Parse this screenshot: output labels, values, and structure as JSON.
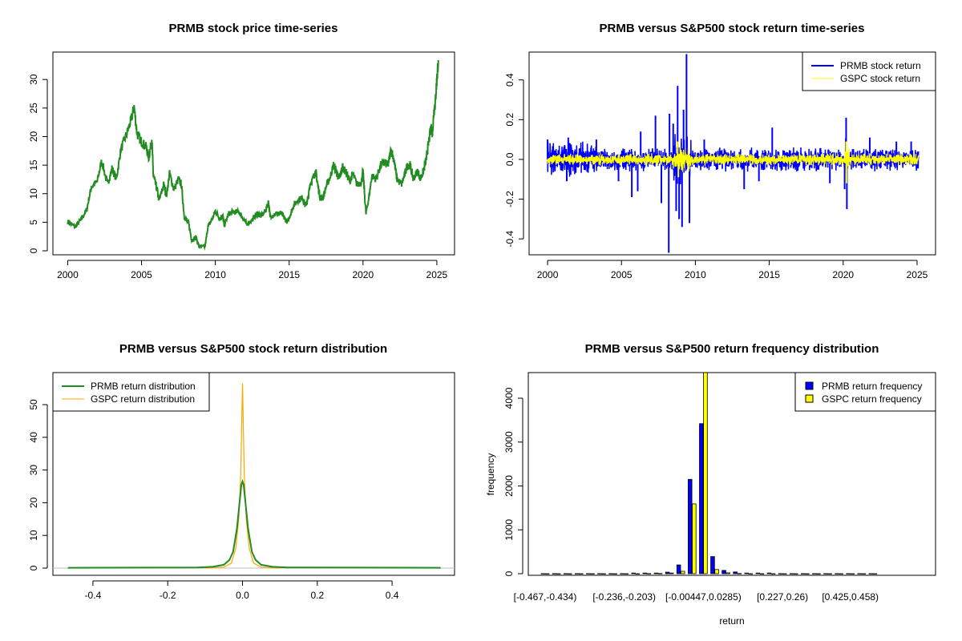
{
  "colors": {
    "prmb_price": "#228B22",
    "prmb_return": "#0000FF",
    "gspc_return": "#FFFF00",
    "prmb_density": "#228B22",
    "gspc_density": "#FFA500",
    "zero_line": "#BEBEBE"
  },
  "chart_data": [
    {
      "type": "line",
      "title": "PRMB stock price time-series",
      "xlabel": "",
      "ylabel": "",
      "xlim": [
        1999.0,
        2026.2
      ],
      "ylim": [
        -0.7,
        34.8
      ],
      "x_ticks": [
        "2000",
        "2005",
        "2010",
        "2015",
        "2020",
        "2025"
      ],
      "y_ticks": [
        "0",
        "5",
        "10",
        "15",
        "20",
        "25",
        "30"
      ],
      "grid": false,
      "series": [
        {
          "points": [
            [
              2000.0,
              5.1
            ],
            [
              2000.5,
              4.2
            ],
            [
              2000.9,
              5.4
            ],
            [
              2001.3,
              7.3
            ],
            [
              2001.6,
              11.2
            ],
            [
              2002.0,
              12.1
            ],
            [
              2002.3,
              15.8
            ],
            [
              2002.7,
              11.6
            ],
            [
              2003.0,
              14.4
            ],
            [
              2003.3,
              12.6
            ],
            [
              2003.6,
              17.7
            ],
            [
              2004.0,
              20.5
            ],
            [
              2004.3,
              22.9
            ],
            [
              2004.5,
              25.2
            ],
            [
              2004.7,
              20.5
            ],
            [
              2005.0,
              19.1
            ],
            [
              2005.3,
              18.2
            ],
            [
              2005.5,
              16.3
            ],
            [
              2005.7,
              19.6
            ],
            [
              2005.8,
              13.1
            ],
            [
              2006.0,
              11.2
            ],
            [
              2006.2,
              8.8
            ],
            [
              2006.5,
              11.6
            ],
            [
              2006.7,
              9.8
            ],
            [
              2006.9,
              13.5
            ],
            [
              2007.2,
              10.7
            ],
            [
              2007.5,
              12.6
            ],
            [
              2007.7,
              11.6
            ],
            [
              2007.9,
              6.0
            ],
            [
              2008.2,
              4.7
            ],
            [
              2008.4,
              1.9
            ],
            [
              2008.7,
              2.3
            ],
            [
              2008.9,
              0.7
            ],
            [
              2009.3,
              0.7
            ],
            [
              2009.5,
              4.2
            ],
            [
              2009.8,
              5.6
            ],
            [
              2010.0,
              7.0
            ],
            [
              2010.3,
              5.6
            ],
            [
              2010.5,
              6.3
            ],
            [
              2010.6,
              4.4
            ],
            [
              2010.9,
              6.5
            ],
            [
              2011.2,
              6.8
            ],
            [
              2011.6,
              6.8
            ],
            [
              2011.9,
              5.6
            ],
            [
              2012.1,
              4.7
            ],
            [
              2012.5,
              5.4
            ],
            [
              2012.8,
              6.5
            ],
            [
              2013.1,
              6.1
            ],
            [
              2013.4,
              7.0
            ],
            [
              2013.6,
              8.6
            ],
            [
              2013.7,
              6.1
            ],
            [
              2014.1,
              6.5
            ],
            [
              2014.5,
              6.5
            ],
            [
              2014.7,
              5.6
            ],
            [
              2014.9,
              5.1
            ],
            [
              2015.1,
              6.5
            ],
            [
              2015.3,
              7.9
            ],
            [
              2015.6,
              8.9
            ],
            [
              2015.9,
              9.3
            ],
            [
              2016.1,
              7.9
            ],
            [
              2016.3,
              9.3
            ],
            [
              2016.4,
              11.6
            ],
            [
              2016.6,
              12.6
            ],
            [
              2016.8,
              14.0
            ],
            [
              2016.9,
              12.1
            ],
            [
              2017.1,
              9.3
            ],
            [
              2017.3,
              9.3
            ],
            [
              2017.5,
              11.2
            ],
            [
              2017.8,
              13.1
            ],
            [
              2018.0,
              15.0
            ],
            [
              2018.2,
              14.0
            ],
            [
              2018.3,
              12.6
            ],
            [
              2018.5,
              13.5
            ],
            [
              2018.6,
              14.7
            ],
            [
              2018.9,
              13.5
            ],
            [
              2019.1,
              12.1
            ],
            [
              2019.3,
              13.5
            ],
            [
              2019.6,
              11.6
            ],
            [
              2019.9,
              12.1
            ],
            [
              2020.0,
              14.0
            ],
            [
              2020.2,
              6.5
            ],
            [
              2020.4,
              9.3
            ],
            [
              2020.6,
              13.1
            ],
            [
              2020.9,
              12.6
            ],
            [
              2021.2,
              15.0
            ],
            [
              2021.5,
              15.4
            ],
            [
              2021.7,
              15.0
            ],
            [
              2021.9,
              17.8
            ],
            [
              2022.1,
              15.9
            ],
            [
              2022.3,
              12.6
            ],
            [
              2022.6,
              11.6
            ],
            [
              2022.8,
              13.1
            ],
            [
              2023.0,
              15.0
            ],
            [
              2023.2,
              15.0
            ],
            [
              2023.4,
              12.6
            ],
            [
              2023.7,
              14.0
            ],
            [
              2023.9,
              12.6
            ],
            [
              2024.1,
              14.0
            ],
            [
              2024.3,
              16.3
            ],
            [
              2024.4,
              18.2
            ],
            [
              2024.6,
              21.5
            ],
            [
              2024.7,
              20.6
            ],
            [
              2024.8,
              24.3
            ],
            [
              2024.9,
              26.2
            ],
            [
              2025.0,
              29.9
            ],
            [
              2025.1,
              33.4
            ]
          ]
        }
      ]
    },
    {
      "type": "line",
      "title": "PRMB versus S&P500 stock return time-series",
      "xlabel": "",
      "ylabel": "",
      "xlim": [
        1998.75,
        2026.25
      ],
      "ylim": [
        -0.48,
        0.54
      ],
      "x_ticks": [
        "2000",
        "2005",
        "2010",
        "2015",
        "2020",
        "2025"
      ],
      "y_ticks": [
        "-0.4",
        "-0.2",
        "0.0",
        "0.2",
        "0.4"
      ],
      "legend": {
        "position": "top-right",
        "entries": [
          "PRMB stock return",
          "GSPC stock return"
        ]
      },
      "series": [
        {
          "name": "PRMB stock return",
          "typical_range": 0.05,
          "spikes": [
            [
              2000.0,
              0.1
            ],
            [
              2001.3,
              -0.11
            ],
            [
              2001.4,
              0.11
            ],
            [
              2003.3,
              0.1
            ],
            [
              2004.8,
              -0.11
            ],
            [
              2005.7,
              -0.19
            ],
            [
              2006.1,
              -0.16
            ],
            [
              2006.3,
              0.14
            ],
            [
              2007.3,
              0.22
            ],
            [
              2007.7,
              -0.22
            ],
            [
              2008.2,
              -0.47
            ],
            [
              2008.25,
              0.23
            ],
            [
              2008.5,
              0.18
            ],
            [
              2008.7,
              -0.26
            ],
            [
              2008.8,
              0.37
            ],
            [
              2008.9,
              -0.3
            ],
            [
              2009.1,
              -0.34
            ],
            [
              2009.2,
              0.25
            ],
            [
              2009.4,
              0.53
            ],
            [
              2009.6,
              -0.32
            ],
            [
              2010.6,
              0.1
            ],
            [
              2013.3,
              -0.15
            ],
            [
              2014.3,
              -0.11
            ],
            [
              2015.2,
              0.16
            ],
            [
              2019.1,
              -0.12
            ],
            [
              2020.1,
              -0.15
            ],
            [
              2020.2,
              0.21
            ],
            [
              2020.25,
              -0.25
            ],
            [
              2021.8,
              0.11
            ],
            [
              2023.6,
              0.09
            ],
            [
              2024.6,
              0.09
            ]
          ]
        },
        {
          "name": "GSPC stock return",
          "typical_range": 0.025,
          "spikes": [
            [
              2008.8,
              0.09
            ],
            [
              2008.85,
              -0.09
            ],
            [
              2020.2,
              0.09
            ],
            [
              2020.22,
              -0.12
            ]
          ]
        }
      ]
    },
    {
      "type": "line",
      "title": "PRMB versus S&P500 stock return distribution",
      "xlabel": "",
      "ylabel": "",
      "xlim": [
        -0.507,
        0.567
      ],
      "ylim": [
        -2.2,
        59.8
      ],
      "x_ticks": [
        "-0.4",
        "-0.2",
        "0.0",
        "0.2",
        "0.4"
      ],
      "y_ticks": [
        "0",
        "10",
        "20",
        "30",
        "40",
        "50"
      ],
      "legend": {
        "position": "top-left",
        "entries": [
          "PRMB return distribution",
          "GSPC return distribution"
        ]
      },
      "series": [
        {
          "name": "PRMB return distribution",
          "points": [
            [
              -0.467,
              0.1
            ],
            [
              -0.12,
              0.2
            ],
            [
              -0.08,
              0.4
            ],
            [
              -0.05,
              1.0
            ],
            [
              -0.035,
              2.5
            ],
            [
              -0.025,
              5
            ],
            [
              -0.015,
              12
            ],
            [
              -0.008,
              20
            ],
            [
              -0.003,
              25.5
            ],
            [
              0,
              26.5
            ],
            [
              0.003,
              25.5
            ],
            [
              0.008,
              20
            ],
            [
              0.015,
              12
            ],
            [
              0.025,
              5
            ],
            [
              0.035,
              2.5
            ],
            [
              0.05,
              1.0
            ],
            [
              0.08,
              0.4
            ],
            [
              0.12,
              0.2
            ],
            [
              0.53,
              0.1
            ]
          ]
        },
        {
          "name": "GSPC return distribution",
          "points": [
            [
              -0.1,
              0
            ],
            [
              -0.05,
              0.3
            ],
            [
              -0.03,
              1.5
            ],
            [
              -0.018,
              6
            ],
            [
              -0.01,
              15
            ],
            [
              -0.005,
              28
            ],
            [
              -0.002,
              45
            ],
            [
              0,
              56.5
            ],
            [
              0.002,
              45
            ],
            [
              0.005,
              28
            ],
            [
              0.01,
              15
            ],
            [
              0.018,
              6
            ],
            [
              0.03,
              1.5
            ],
            [
              0.05,
              0.3
            ],
            [
              0.1,
              0
            ]
          ]
        }
      ]
    },
    {
      "type": "bar",
      "title": "PRMB versus S&P500 return frequency distribution",
      "xlabel": "return",
      "ylabel": "frequency",
      "ylim": [
        0,
        4584
      ],
      "y_ticks": [
        "0",
        "1000",
        "2000",
        "3000",
        "4000"
      ],
      "x_tick_labels": [
        {
          "bin": 0,
          "label": "[-0.467,-0.434)"
        },
        {
          "bin": 7,
          "label": "[-0.236,-0.203)"
        },
        {
          "bin": 14,
          "label": "[-0.00447,0.0285)"
        },
        {
          "bin": 21,
          "label": "[0.227,0.26)"
        },
        {
          "bin": 27,
          "label": "[0.425,0.458)"
        }
      ],
      "legend": {
        "position": "top-right",
        "entries": [
          "PRMB return frequency",
          "GSPC return frequency"
        ]
      },
      "series": [
        {
          "name": "PRMB return frequency",
          "values": [
            2,
            2,
            2,
            2,
            2,
            2,
            2,
            2,
            15,
            15,
            15,
            35,
            200,
            2150,
            3420,
            390,
            75,
            40,
            15,
            15,
            15,
            2,
            2,
            2,
            2,
            2,
            2,
            2,
            2,
            2
          ]
        },
        {
          "name": "GSPC return frequency",
          "values": [
            0,
            0,
            0,
            0,
            0,
            0,
            0,
            0,
            0,
            3,
            5,
            15,
            55,
            1590,
            4600,
            95,
            20,
            5,
            0,
            0,
            0,
            0,
            0,
            0,
            0,
            0,
            0,
            0,
            0,
            0
          ]
        }
      ]
    }
  ]
}
